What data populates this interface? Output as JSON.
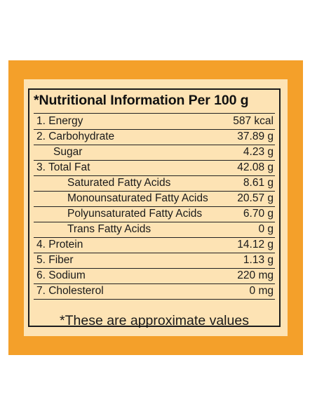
{
  "label": {
    "title": "*Nutritional Information Per 100 g",
    "rows": [
      {
        "name": "1. Energy",
        "value": "587 kcal"
      },
      {
        "name": "2. Carbohydrate",
        "value": "37.89 g"
      },
      {
        "name": "Sugar",
        "value": "4.23 g"
      },
      {
        "name": "3. Total Fat",
        "value": "42.08 g"
      },
      {
        "name": "Saturated Fatty Acids",
        "value": "8.61 g"
      },
      {
        "name": "Monounsaturated Fatty Acids",
        "value": "20.57 g"
      },
      {
        "name": "Polyunsaturated Fatty Acids",
        "value": "6.70 g"
      },
      {
        "name": "Trans Fatty Acids",
        "value": "0 g"
      },
      {
        "name": "4. Protein",
        "value": "14.12 g"
      },
      {
        "name": "5. Fiber",
        "value": "1.13 g"
      },
      {
        "name": "6. Sodium",
        "value": "220 mg"
      },
      {
        "name": "7. Cholesterol",
        "value": "0 mg"
      }
    ],
    "footnote": "*These are approximate values"
  },
  "colors": {
    "panel": "#f4a02a",
    "card": "#fde3b4",
    "text": "#1a1a1a"
  }
}
